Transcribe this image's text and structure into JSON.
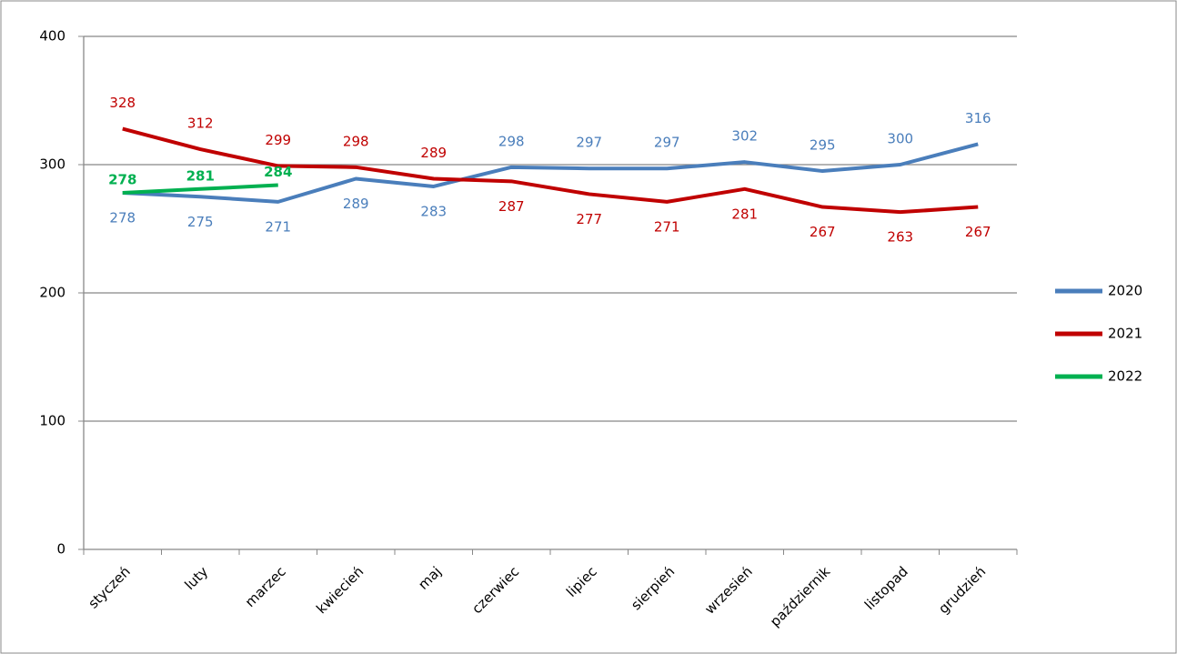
{
  "chart_data": {
    "type": "line",
    "categories": [
      "styczeń",
      "luty",
      "marzec",
      "kwiecień",
      "maj",
      "czerwiec",
      "lipiec",
      "sierpień",
      "wrzesień",
      "październik",
      "listopad",
      "grudzień"
    ],
    "series": [
      {
        "name": "2020",
        "color": "#4a7ebb",
        "values": [
          278,
          275,
          271,
          289,
          283,
          298,
          297,
          297,
          302,
          295,
          300,
          316
        ]
      },
      {
        "name": "2021",
        "color": "#c00000",
        "values": [
          328,
          312,
          299,
          298,
          289,
          287,
          277,
          271,
          281,
          267,
          263,
          267
        ]
      },
      {
        "name": "2022",
        "color": "#00b050",
        "values": [
          278,
          281,
          284,
          null,
          null,
          null,
          null,
          null,
          null,
          null,
          null,
          null
        ]
      }
    ],
    "ylim": [
      0,
      400
    ],
    "yticks": [
      0,
      100,
      200,
      300,
      400
    ],
    "grid": true,
    "legend": "right"
  }
}
